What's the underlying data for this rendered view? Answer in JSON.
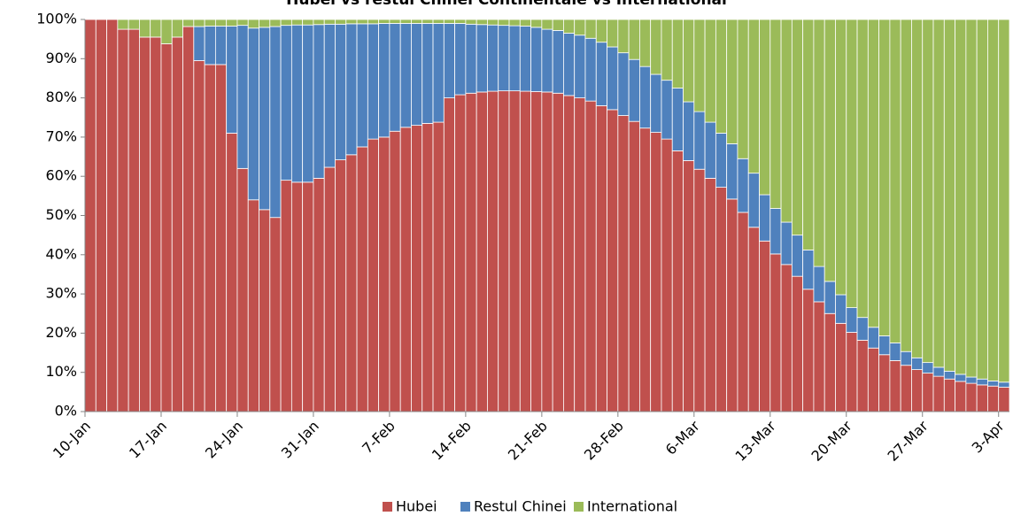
{
  "chart_data": {
    "type": "stacked_bar_100",
    "title": "Hubei vs restul Chinei Continentale vs International",
    "categories": [
      "10-Jan",
      null,
      null,
      null,
      null,
      null,
      null,
      "17-Jan",
      null,
      null,
      null,
      null,
      null,
      null,
      "24-Jan",
      null,
      null,
      null,
      null,
      null,
      null,
      "31-Jan",
      null,
      null,
      null,
      null,
      null,
      null,
      "7-Feb",
      null,
      null,
      null,
      null,
      null,
      null,
      "14-Feb",
      null,
      null,
      null,
      null,
      null,
      null,
      "21-Feb",
      null,
      null,
      null,
      null,
      null,
      null,
      "28-Feb",
      null,
      null,
      null,
      null,
      null,
      null,
      "6-Mar",
      null,
      null,
      null,
      null,
      null,
      null,
      "13-Mar",
      null,
      null,
      null,
      null,
      null,
      null,
      "20-Mar",
      null,
      null,
      null,
      null,
      null,
      null,
      "27-Mar",
      null,
      null,
      null,
      null,
      null,
      null,
      "3-Apr"
    ],
    "series": [
      {
        "name": "Hubei",
        "color": "#c0504d",
        "values": [
          100,
          100,
          100,
          97.5,
          97.5,
          95.5,
          95.5,
          93.8,
          95.5,
          98.2,
          89.5,
          88.5,
          88.5,
          71,
          62,
          54,
          51.5,
          49.5,
          59,
          58.5,
          58.5,
          59.5,
          62.3,
          64.2,
          65.5,
          67.5,
          69.5,
          70,
          71.5,
          72.5,
          73,
          73.5,
          73.8,
          80,
          80.8,
          81.2,
          81.5,
          81.7,
          81.8,
          81.8,
          81.7,
          81.6,
          81.5,
          81.2,
          80.6,
          80,
          79.2,
          78,
          77,
          75.5,
          74,
          72.3,
          71.2,
          69.5,
          66.5,
          64,
          61.8,
          59.5,
          57.2,
          54.2,
          50.8,
          47,
          43.5,
          40.2,
          37.5,
          34.5,
          31.2,
          28,
          25,
          22.5,
          20.2,
          18.2,
          16.2,
          14.5,
          13,
          11.8,
          10.7,
          9.8,
          9,
          8.3,
          7.7,
          7.2,
          6.8,
          6.5,
          6.2
        ]
      },
      {
        "name": "Restul Chinei",
        "color": "#4f81bd",
        "values": [
          0,
          0,
          0,
          0,
          0,
          0,
          0,
          0,
          0,
          0,
          8.7,
          9.8,
          9.8,
          27.3,
          36.5,
          43.8,
          46.5,
          48.7,
          39.5,
          40.1,
          40.1,
          39.2,
          36.5,
          34.6,
          33.4,
          31.4,
          29.4,
          29,
          27.5,
          26.5,
          26,
          25.5,
          25.2,
          19,
          18.2,
          17.6,
          17.2,
          16.9,
          16.7,
          16.6,
          16.6,
          16.4,
          16,
          16,
          15.9,
          16,
          16,
          16.2,
          16,
          16,
          15.8,
          15.7,
          14.8,
          15,
          16,
          15,
          14.7,
          14.3,
          13.8,
          14.1,
          13.7,
          13.8,
          11.8,
          11.6,
          10.8,
          10.5,
          10,
          9,
          8.2,
          7.3,
          6.3,
          5.8,
          5.3,
          4.8,
          4.5,
          3.5,
          3,
          2.7,
          2.3,
          2,
          1.8,
          1.6,
          1.5,
          1.3,
          1.3
        ]
      },
      {
        "name": "International",
        "color": "#9bbb59",
        "values": [
          0,
          0,
          0,
          2.5,
          2.5,
          4.5,
          4.5,
          6.2,
          4.5,
          1.8,
          1.8,
          1.7,
          1.7,
          1.7,
          1.5,
          2.2,
          2,
          1.8,
          1.5,
          1.4,
          1.4,
          1.3,
          1.2,
          1.2,
          1.1,
          1.1,
          1.1,
          1,
          1,
          1,
          1,
          1,
          1,
          1,
          1,
          1.2,
          1.3,
          1.4,
          1.5,
          1.6,
          1.7,
          2,
          2.5,
          2.8,
          3.5,
          4,
          4.8,
          5.8,
          7,
          8.5,
          10.2,
          12,
          14,
          15.5,
          17.5,
          21,
          23.5,
          26.2,
          29,
          31.7,
          35.5,
          39.2,
          44.7,
          48.2,
          51.7,
          55,
          58.8,
          63,
          66.8,
          70.2,
          73.5,
          76,
          78.5,
          80.7,
          82.5,
          84.7,
          86.3,
          87.5,
          88.7,
          89.7,
          90.5,
          91.2,
          91.7,
          92.2,
          92.5
        ]
      }
    ],
    "ylim": [
      0,
      100
    ],
    "yticks": [
      {
        "value": 0,
        "label": "0%"
      },
      {
        "value": 10,
        "label": "10%"
      },
      {
        "value": 20,
        "label": "20%"
      },
      {
        "value": 30,
        "label": "30%"
      },
      {
        "value": 40,
        "label": "40%"
      },
      {
        "value": 50,
        "label": "50%"
      },
      {
        "value": 60,
        "label": "60%"
      },
      {
        "value": 70,
        "label": "70%"
      },
      {
        "value": 80,
        "label": "80%"
      },
      {
        "value": 90,
        "label": "90%"
      },
      {
        "value": 100,
        "label": "100%"
      }
    ],
    "legend": "bottom"
  }
}
